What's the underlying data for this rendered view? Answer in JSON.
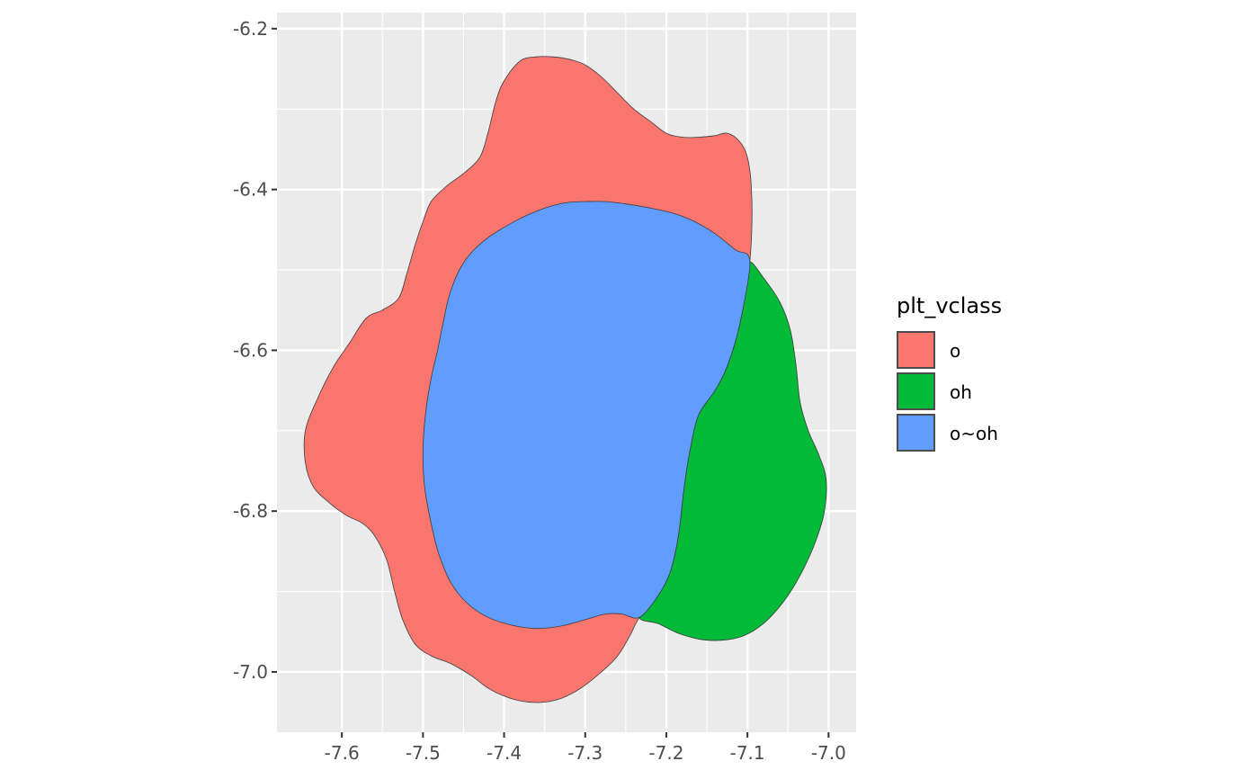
{
  "chart_data": {
    "type": "area",
    "xlim": [
      -7.68,
      -6.966
    ],
    "ylim": [
      -7.075,
      -6.18
    ],
    "x_ticks": [
      "-7.6",
      "-7.5",
      "-7.4",
      "-7.3",
      "-7.2",
      "-7.1",
      "-7.0"
    ],
    "y_ticks": [
      "-6.2",
      "-6.4",
      "-6.6",
      "-6.8",
      "-7.0"
    ],
    "x_tick_values": [
      -7.6,
      -7.5,
      -7.4,
      -7.3,
      -7.2,
      -7.1,
      -7.0
    ],
    "y_tick_values": [
      -6.2,
      -6.4,
      -6.6,
      -6.8,
      -7.0
    ],
    "grid": true,
    "legend": {
      "title": "plt_vclass",
      "position": "right"
    },
    "series": [
      {
        "name": "o",
        "color": "#F8766D",
        "polygon": [
          [
            -7.36,
            -6.235
          ],
          [
            -7.38,
            -6.24
          ],
          [
            -7.4,
            -6.265
          ],
          [
            -7.41,
            -6.29
          ],
          [
            -7.42,
            -6.33
          ],
          [
            -7.43,
            -6.36
          ],
          [
            -7.45,
            -6.38
          ],
          [
            -7.47,
            -6.395
          ],
          [
            -7.49,
            -6.415
          ],
          [
            -7.5,
            -6.44
          ],
          [
            -7.51,
            -6.47
          ],
          [
            -7.52,
            -6.505
          ],
          [
            -7.53,
            -6.535
          ],
          [
            -7.55,
            -6.55
          ],
          [
            -7.57,
            -6.56
          ],
          [
            -7.59,
            -6.59
          ],
          [
            -7.61,
            -6.62
          ],
          [
            -7.63,
            -6.66
          ],
          [
            -7.645,
            -6.7
          ],
          [
            -7.645,
            -6.74
          ],
          [
            -7.635,
            -6.77
          ],
          [
            -7.615,
            -6.79
          ],
          [
            -7.595,
            -6.805
          ],
          [
            -7.575,
            -6.815
          ],
          [
            -7.56,
            -6.83
          ],
          [
            -7.545,
            -6.86
          ],
          [
            -7.535,
            -6.9
          ],
          [
            -7.525,
            -6.935
          ],
          [
            -7.51,
            -6.965
          ],
          [
            -7.49,
            -6.98
          ],
          [
            -7.465,
            -6.99
          ],
          [
            -7.44,
            -7.005
          ],
          [
            -7.42,
            -7.02
          ],
          [
            -7.4,
            -7.03
          ],
          [
            -7.38,
            -7.036
          ],
          [
            -7.355,
            -7.038
          ],
          [
            -7.33,
            -7.033
          ],
          [
            -7.305,
            -7.02
          ],
          [
            -7.28,
            -7.0
          ],
          [
            -7.26,
            -6.98
          ],
          [
            -7.245,
            -6.955
          ],
          [
            -7.233,
            -6.932
          ],
          [
            -7.21,
            -6.905
          ],
          [
            -7.195,
            -6.875
          ],
          [
            -7.185,
            -6.83
          ],
          [
            -7.178,
            -6.77
          ],
          [
            -7.17,
            -6.72
          ],
          [
            -7.16,
            -6.68
          ],
          [
            -7.14,
            -6.65
          ],
          [
            -7.125,
            -6.62
          ],
          [
            -7.11,
            -6.57
          ],
          [
            -7.1,
            -6.515
          ],
          [
            -7.095,
            -6.46
          ],
          [
            -7.095,
            -6.4
          ],
          [
            -7.1,
            -6.36
          ],
          [
            -7.11,
            -6.34
          ],
          [
            -7.125,
            -6.33
          ],
          [
            -7.14,
            -6.333
          ],
          [
            -7.16,
            -6.335
          ],
          [
            -7.18,
            -6.335
          ],
          [
            -7.2,
            -6.33
          ],
          [
            -7.22,
            -6.315
          ],
          [
            -7.24,
            -6.3
          ],
          [
            -7.26,
            -6.28
          ],
          [
            -7.28,
            -6.26
          ],
          [
            -7.3,
            -6.245
          ],
          [
            -7.32,
            -6.238
          ],
          [
            -7.34,
            -6.235
          ]
        ]
      },
      {
        "name": "oh",
        "color": "#00BA38",
        "polygon": [
          [
            -7.097,
            -6.49
          ],
          [
            -7.08,
            -6.51
          ],
          [
            -7.06,
            -6.54
          ],
          [
            -7.047,
            -6.575
          ],
          [
            -7.04,
            -6.62
          ],
          [
            -7.035,
            -6.665
          ],
          [
            -7.025,
            -6.7
          ],
          [
            -7.012,
            -6.73
          ],
          [
            -7.003,
            -6.76
          ],
          [
            -7.005,
            -6.8
          ],
          [
            -7.015,
            -6.835
          ],
          [
            -7.03,
            -6.87
          ],
          [
            -7.05,
            -6.905
          ],
          [
            -7.075,
            -6.935
          ],
          [
            -7.1,
            -6.953
          ],
          [
            -7.125,
            -6.96
          ],
          [
            -7.155,
            -6.96
          ],
          [
            -7.185,
            -6.952
          ],
          [
            -7.21,
            -6.94
          ],
          [
            -7.233,
            -6.932
          ],
          [
            -7.21,
            -6.905
          ],
          [
            -7.195,
            -6.875
          ],
          [
            -7.185,
            -6.83
          ],
          [
            -7.178,
            -6.77
          ],
          [
            -7.17,
            -6.72
          ],
          [
            -7.16,
            -6.68
          ],
          [
            -7.14,
            -6.65
          ],
          [
            -7.125,
            -6.62
          ],
          [
            -7.11,
            -6.57
          ],
          [
            -7.1,
            -6.515
          ]
        ]
      },
      {
        "name": "o~oh",
        "color": "#619CFF",
        "polygon": [
          [
            -7.3,
            -6.415
          ],
          [
            -7.32,
            -6.416
          ],
          [
            -7.34,
            -6.42
          ],
          [
            -7.36,
            -6.427
          ],
          [
            -7.38,
            -6.436
          ],
          [
            -7.4,
            -6.447
          ],
          [
            -7.42,
            -6.46
          ],
          [
            -7.44,
            -6.478
          ],
          [
            -7.455,
            -6.5
          ],
          [
            -7.467,
            -6.53
          ],
          [
            -7.475,
            -6.565
          ],
          [
            -7.482,
            -6.6
          ],
          [
            -7.49,
            -6.635
          ],
          [
            -7.497,
            -6.68
          ],
          [
            -7.5,
            -6.725
          ],
          [
            -7.498,
            -6.77
          ],
          [
            -7.49,
            -6.815
          ],
          [
            -7.48,
            -6.855
          ],
          [
            -7.465,
            -6.89
          ],
          [
            -7.445,
            -6.915
          ],
          [
            -7.42,
            -6.932
          ],
          [
            -7.39,
            -6.942
          ],
          [
            -7.36,
            -6.946
          ],
          [
            -7.33,
            -6.943
          ],
          [
            -7.3,
            -6.935
          ],
          [
            -7.275,
            -6.928
          ],
          [
            -7.255,
            -6.928
          ],
          [
            -7.233,
            -6.932
          ],
          [
            -7.21,
            -6.905
          ],
          [
            -7.195,
            -6.875
          ],
          [
            -7.185,
            -6.83
          ],
          [
            -7.178,
            -6.77
          ],
          [
            -7.17,
            -6.72
          ],
          [
            -7.16,
            -6.68
          ],
          [
            -7.14,
            -6.65
          ],
          [
            -7.125,
            -6.62
          ],
          [
            -7.11,
            -6.57
          ],
          [
            -7.097,
            -6.49
          ],
          [
            -7.115,
            -6.475
          ],
          [
            -7.14,
            -6.455
          ],
          [
            -7.165,
            -6.44
          ],
          [
            -7.19,
            -6.43
          ],
          [
            -7.22,
            -6.423
          ],
          [
            -7.25,
            -6.418
          ],
          [
            -7.275,
            -6.415
          ]
        ]
      }
    ]
  }
}
